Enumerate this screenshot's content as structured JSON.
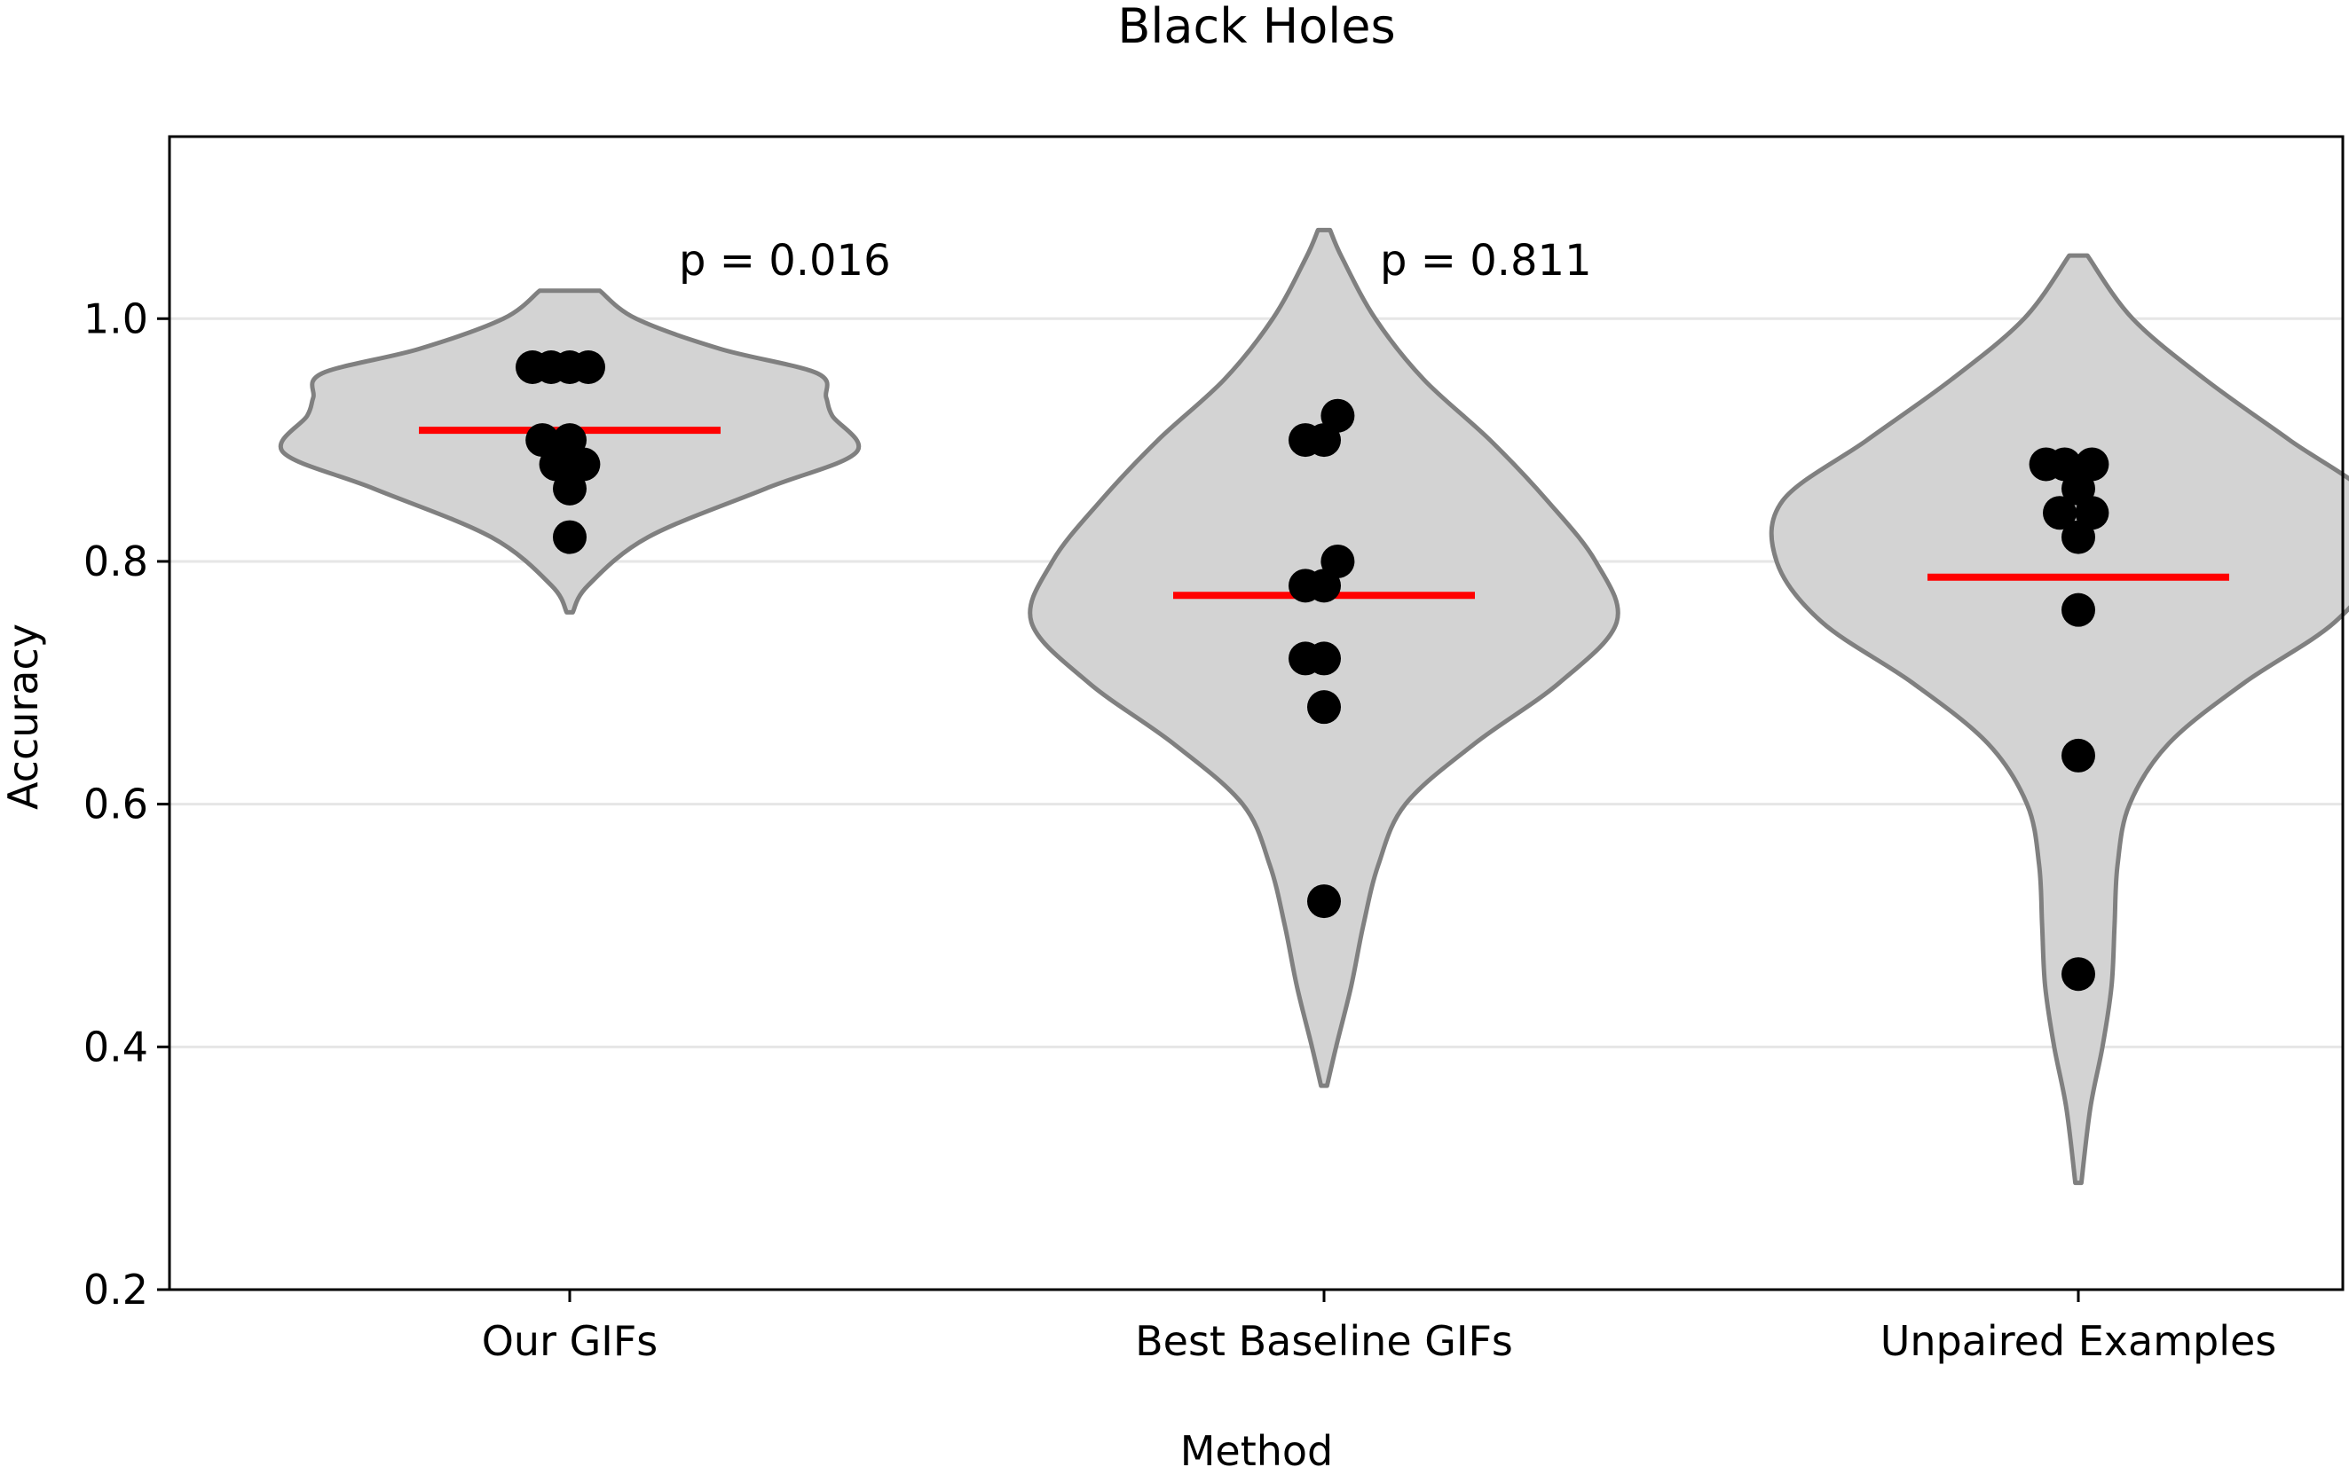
{
  "chart_data": {
    "type": "violin",
    "title": "Black Holes",
    "xlabel": "Method",
    "ylabel": "Accuracy",
    "ylim": [
      0.2,
      1.15
    ],
    "yticks": [
      0.2,
      0.4,
      0.6,
      0.8,
      1.0
    ],
    "ytick_labels": [
      "0.2",
      "0.4",
      "0.6",
      "0.8",
      "1.0"
    ],
    "grid": "horizontal",
    "categories": [
      "Our GIFs",
      "Best Baseline GIFs",
      "Unpaired Examples"
    ],
    "groups": [
      {
        "name": "Our GIFs",
        "points": [
          {
            "dx": -0.3,
            "y": 0.96
          },
          {
            "dx": -0.15,
            "y": 0.96
          },
          {
            "dx": 0.0,
            "y": 0.96
          },
          {
            "dx": 0.15,
            "y": 0.96
          },
          {
            "dx": -0.22,
            "y": 0.9
          },
          {
            "dx": 0.0,
            "y": 0.9
          },
          {
            "dx": -0.11,
            "y": 0.88
          },
          {
            "dx": 0.11,
            "y": 0.88
          },
          {
            "dx": 0.0,
            "y": 0.86
          },
          {
            "dx": 0.0,
            "y": 0.82
          }
        ],
        "mean": 0.908,
        "violin_range": [
          0.758,
          1.023
        ],
        "violin_profile": [
          [
            0.758,
            0.01
          ],
          [
            0.78,
            0.06
          ],
          [
            0.82,
            0.26
          ],
          [
            0.86,
            0.65
          ],
          [
            0.89,
            0.95
          ],
          [
            0.92,
            0.87
          ],
          [
            0.935,
            0.85
          ],
          [
            0.955,
            0.82
          ],
          [
            0.975,
            0.5
          ],
          [
            1.0,
            0.22
          ],
          [
            1.023,
            0.1
          ]
        ],
        "p_value": "p = 0.016"
      },
      {
        "name": "Best Baseline GIFs",
        "points": [
          {
            "dx": -0.15,
            "y": 0.9
          },
          {
            "dx": 0.0,
            "y": 0.9
          },
          {
            "dx": 0.11,
            "y": 0.92
          },
          {
            "dx": 0.11,
            "y": 0.8
          },
          {
            "dx": -0.15,
            "y": 0.78
          },
          {
            "dx": 0.0,
            "y": 0.78
          },
          {
            "dx": -0.15,
            "y": 0.72
          },
          {
            "dx": 0.0,
            "y": 0.72
          },
          {
            "dx": 0.0,
            "y": 0.68
          },
          {
            "dx": 0.0,
            "y": 0.52
          }
        ],
        "mean": 0.772,
        "violin_range": [
          0.368,
          1.073
        ],
        "violin_profile": [
          [
            0.368,
            0.01
          ],
          [
            0.4,
            0.04
          ],
          [
            0.45,
            0.09
          ],
          [
            0.5,
            0.13
          ],
          [
            0.55,
            0.18
          ],
          [
            0.6,
            0.27
          ],
          [
            0.65,
            0.5
          ],
          [
            0.7,
            0.78
          ],
          [
            0.75,
            0.97
          ],
          [
            0.8,
            0.9
          ],
          [
            0.85,
            0.74
          ],
          [
            0.9,
            0.55
          ],
          [
            0.95,
            0.33
          ],
          [
            1.0,
            0.17
          ],
          [
            1.05,
            0.06
          ],
          [
            1.073,
            0.02
          ]
        ]
      },
      {
        "name": "Unpaired Examples",
        "points": [
          {
            "dx": -0.26,
            "y": 0.88
          },
          {
            "dx": -0.11,
            "y": 0.88
          },
          {
            "dx": 0.11,
            "y": 0.88
          },
          {
            "dx": 0.0,
            "y": 0.86
          },
          {
            "dx": -0.15,
            "y": 0.84
          },
          {
            "dx": 0.11,
            "y": 0.84
          },
          {
            "dx": 0.0,
            "y": 0.82
          },
          {
            "dx": 0.0,
            "y": 0.76
          },
          {
            "dx": 0.0,
            "y": 0.64
          },
          {
            "dx": 0.0,
            "y": 0.46
          }
        ],
        "mean": 0.787,
        "violin_range": [
          0.288,
          1.052
        ],
        "violin_profile": [
          [
            0.288,
            0.01
          ],
          [
            0.35,
            0.04
          ],
          [
            0.4,
            0.08
          ],
          [
            0.45,
            0.11
          ],
          [
            0.5,
            0.12
          ],
          [
            0.55,
            0.13
          ],
          [
            0.6,
            0.17
          ],
          [
            0.65,
            0.3
          ],
          [
            0.7,
            0.55
          ],
          [
            0.75,
            0.85
          ],
          [
            0.8,
            1.0
          ],
          [
            0.85,
            0.98
          ],
          [
            0.9,
            0.7
          ],
          [
            0.95,
            0.42
          ],
          [
            1.0,
            0.18
          ],
          [
            1.052,
            0.03
          ]
        ],
        "p_value": "p = 0.811"
      }
    ],
    "colors": {
      "violin_fill": "#d3d3d3",
      "violin_edge": "#808080",
      "mean_line": "#ff0000",
      "points": "#000000",
      "grid": "#e6e6e6"
    }
  }
}
